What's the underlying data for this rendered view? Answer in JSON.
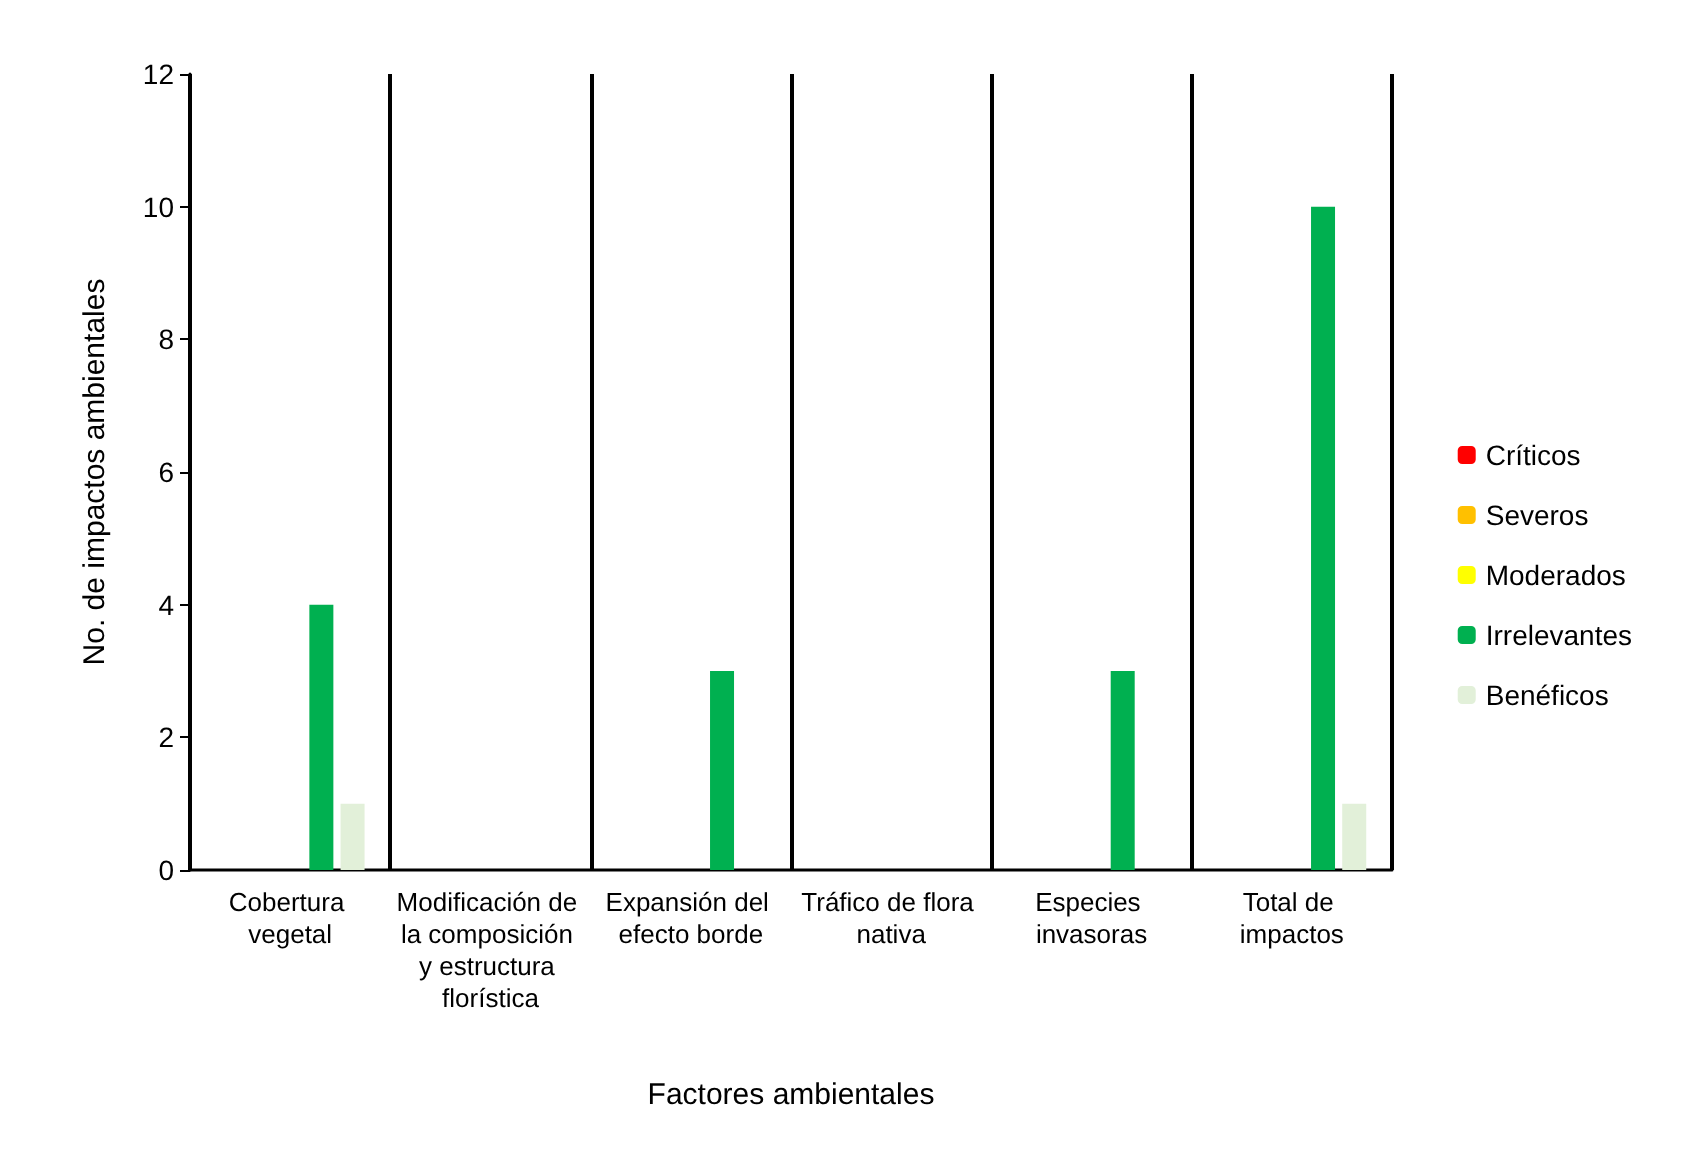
{
  "chart_data": {
    "type": "bar",
    "xlabel": "Factores ambientales",
    "ylabel": "No. de impactos ambientales",
    "categories": [
      "Cobertura vegetal",
      "Modificación de la composición y estructura florística",
      "Expansión del efecto borde",
      "Tráfico de flora nativa",
      "Especies invasoras",
      "Total de impactos"
    ],
    "series": [
      {
        "name": "Críticos",
        "color": "#ff0000",
        "values": [
          0,
          0,
          0,
          0,
          0,
          0
        ]
      },
      {
        "name": "Severos",
        "color": "#ffc000",
        "values": [
          0,
          0,
          0,
          0,
          0,
          0
        ]
      },
      {
        "name": "Moderados",
        "color": "#ffff00",
        "values": [
          0,
          0,
          0,
          0,
          0,
          0
        ]
      },
      {
        "name": "Irrelevantes",
        "color": "#00b050",
        "values": [
          4,
          0,
          3,
          0,
          3,
          10
        ]
      },
      {
        "name": "Benéficos",
        "color": "#e2f0d9",
        "values": [
          1,
          0,
          0,
          0,
          0,
          1
        ]
      }
    ],
    "ylim": [
      0,
      12
    ],
    "yticks": [
      0,
      2,
      4,
      6,
      8,
      10,
      12
    ],
    "grid": "x",
    "legend": "right"
  }
}
